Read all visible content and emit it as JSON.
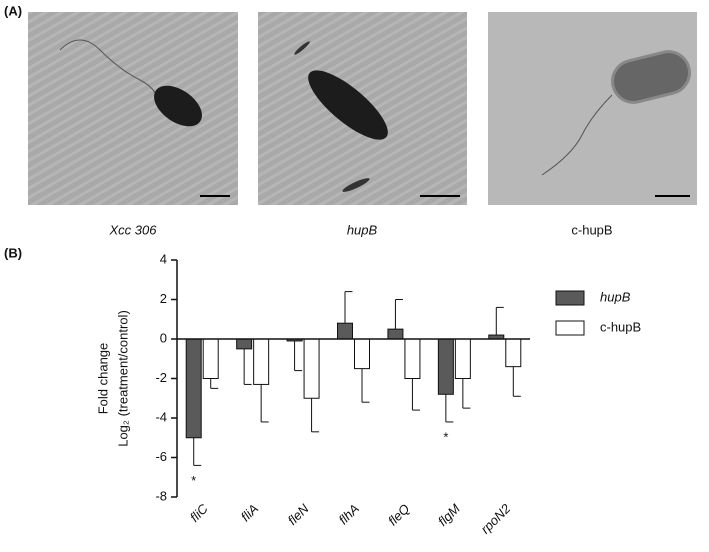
{
  "panels": {
    "a_label": "(A)",
    "b_label": "(B)",
    "captions": [
      "Xcc 306",
      "hupB",
      "c-hupB"
    ]
  },
  "chart_data": {
    "type": "bar",
    "ylabel": [
      "Fold change",
      "Log₂ (treatment/control)"
    ],
    "categories": [
      "fliC",
      "fliA",
      "fleN",
      "flhA",
      "fleQ",
      "flgM",
      "rpoN2"
    ],
    "series": [
      {
        "name": "hupB",
        "color": "#5a5a5a",
        "values": [
          -5,
          -0.5,
          -0.1,
          0.8,
          0.5,
          -2.8,
          0.2
        ],
        "errors": [
          1.4,
          1.8,
          1.5,
          1.6,
          1.5,
          1.4,
          1.4
        ]
      },
      {
        "name": "c-hupB",
        "color": "#ffffff",
        "values": [
          -2,
          -2.3,
          -3,
          -1.5,
          -2,
          -2,
          -1.4
        ],
        "errors": [
          0.5,
          1.9,
          1.7,
          1.7,
          1.6,
          1.5,
          1.5
        ]
      }
    ],
    "ylim": [
      -8,
      4
    ],
    "yticks": [
      -8,
      -6,
      -4,
      -2,
      0,
      2,
      4
    ],
    "annotations": [
      {
        "text": "*",
        "category": "fliC"
      },
      {
        "text": "*",
        "category": "flgM"
      }
    ],
    "legend": "right"
  }
}
